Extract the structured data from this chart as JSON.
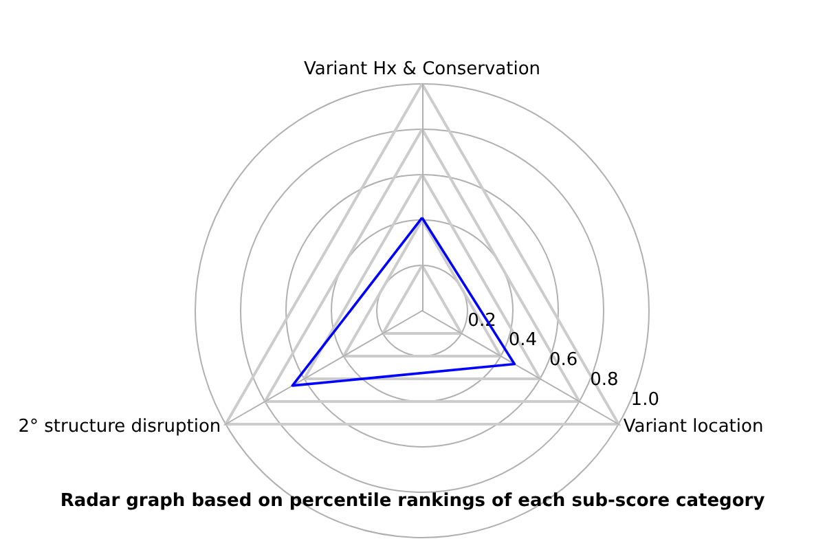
{
  "chart_data": {
    "type": "radar",
    "title": "Radar graph based on percentile rankings of each sub-score category",
    "categories": [
      "Variant Hx & Conservation",
      "Variant location",
      "2° structure disruption"
    ],
    "series": [
      {
        "color": "#0000ff",
        "values": [
          0.41,
          0.47,
          0.66
        ]
      }
    ],
    "ylim": [
      0,
      1.0
    ],
    "yticks": [
      0.2,
      0.4,
      0.6,
      0.8,
      {
        "value": 1.0,
        "label": "1.0"
      }
    ],
    "grid": true,
    "marker": "none",
    "line_style": "solid"
  }
}
